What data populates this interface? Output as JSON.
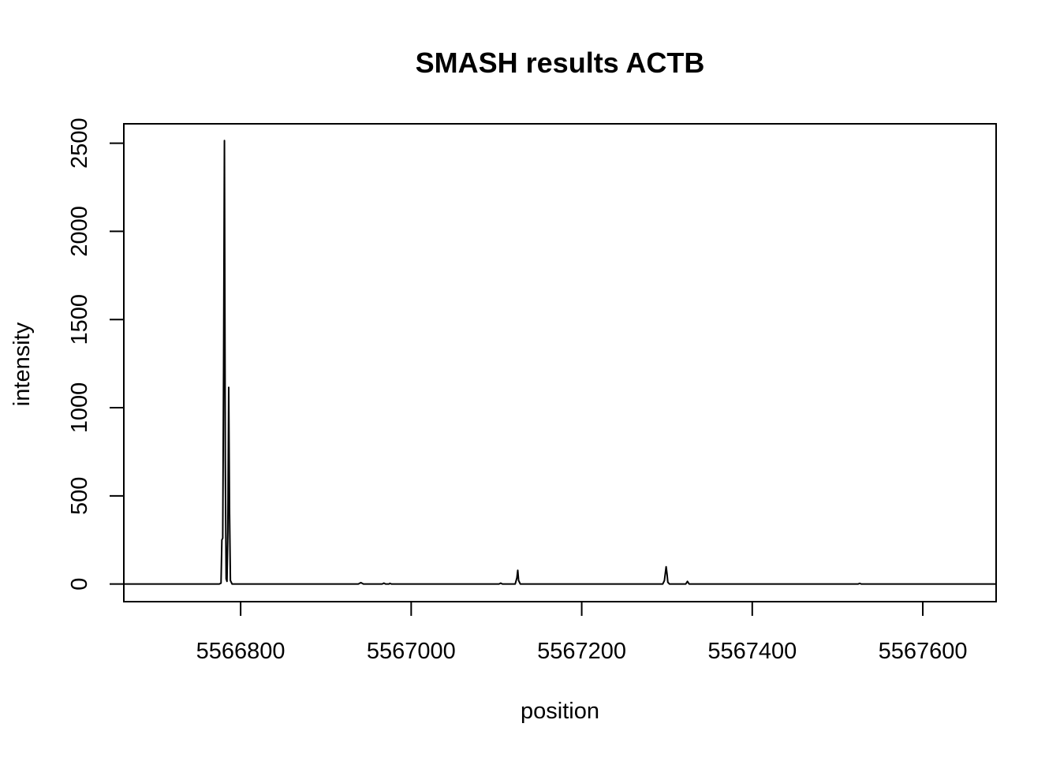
{
  "chart_data": {
    "type": "line",
    "title": "SMASH results ACTB",
    "xlabel": "position",
    "ylabel": "intensity",
    "xlim": [
      5566663,
      5567686
    ],
    "ylim": [
      -100,
      2610
    ],
    "xticks": [
      5566800,
      5567000,
      5567200,
      5567400,
      5567600
    ],
    "yticks": [
      0,
      500,
      1000,
      1500,
      2000,
      2500
    ],
    "grid": false,
    "legend": "none",
    "line_color": "#000000",
    "series": [
      {
        "points": [
          [
            5566663,
            0
          ],
          [
            5566775,
            0
          ],
          [
            5566777,
            5
          ],
          [
            5566778,
            250
          ],
          [
            5566779,
            260
          ],
          [
            5566780,
            1200
          ],
          [
            5566781,
            2515
          ],
          [
            5566782,
            700
          ],
          [
            5566783,
            30
          ],
          [
            5566784,
            15
          ],
          [
            5566785,
            300
          ],
          [
            5566786,
            1115
          ],
          [
            5566787,
            400
          ],
          [
            5566788,
            20
          ],
          [
            5566790,
            0
          ],
          [
            5566938,
            0
          ],
          [
            5566941,
            8
          ],
          [
            5566944,
            0
          ],
          [
            5566966,
            0
          ],
          [
            5566968,
            5
          ],
          [
            5566970,
            0
          ],
          [
            5566974,
            0
          ],
          [
            5566975,
            4
          ],
          [
            5566977,
            0
          ],
          [
            5567103,
            0
          ],
          [
            5567105,
            5
          ],
          [
            5567107,
            0
          ],
          [
            5567122,
            0
          ],
          [
            5567124,
            35
          ],
          [
            5567125,
            78
          ],
          [
            5567126,
            20
          ],
          [
            5567128,
            0
          ],
          [
            5567295,
            0
          ],
          [
            5567297,
            20
          ],
          [
            5567299,
            98
          ],
          [
            5567300,
            60
          ],
          [
            5567301,
            10
          ],
          [
            5567303,
            0
          ],
          [
            5567322,
            0
          ],
          [
            5567324,
            15
          ],
          [
            5567326,
            0
          ],
          [
            5567524,
            0
          ],
          [
            5567526,
            4
          ],
          [
            5567528,
            0
          ],
          [
            5567686,
            0
          ]
        ]
      }
    ]
  }
}
